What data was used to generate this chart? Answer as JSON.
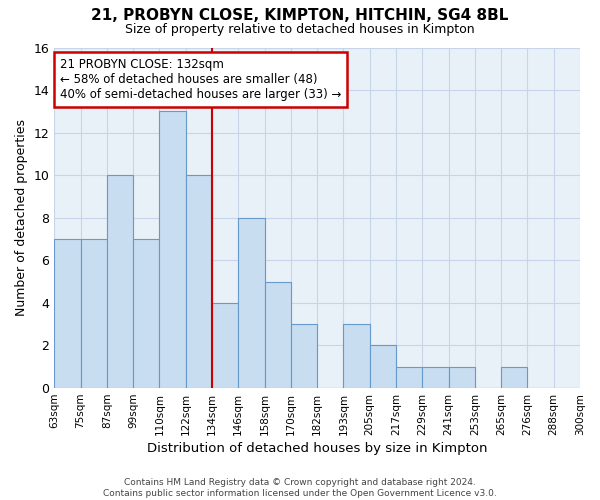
{
  "title": "21, PROBYN CLOSE, KIMPTON, HITCHIN, SG4 8BL",
  "subtitle": "Size of property relative to detached houses in Kimpton",
  "xlabel": "Distribution of detached houses by size in Kimpton",
  "ylabel": "Number of detached properties",
  "footer_line1": "Contains HM Land Registry data © Crown copyright and database right 2024.",
  "footer_line2": "Contains public sector information licensed under the Open Government Licence v3.0.",
  "bin_labels": [
    "63sqm",
    "75sqm",
    "87sqm",
    "99sqm",
    "110sqm",
    "122sqm",
    "134sqm",
    "146sqm",
    "158sqm",
    "170sqm",
    "182sqm",
    "193sqm",
    "205sqm",
    "217sqm",
    "229sqm",
    "241sqm",
    "253sqm",
    "265sqm",
    "276sqm",
    "288sqm",
    "300sqm"
  ],
  "bar_values": [
    7,
    7,
    10,
    7,
    13,
    10,
    4,
    8,
    5,
    3,
    0,
    3,
    2,
    1,
    1,
    1,
    0,
    1,
    0,
    0
  ],
  "bar_color": "#c8ddef",
  "bar_edge_color": "#6699cc",
  "reference_line_x": 6.0,
  "reference_line_color": "#cc0000",
  "ylim": [
    0,
    16
  ],
  "yticks": [
    0,
    2,
    4,
    6,
    8,
    10,
    12,
    14,
    16
  ],
  "annotation_line1": "21 PROBYN CLOSE: 132sqm",
  "annotation_line2": "← 58% of detached houses are smaller (48)",
  "annotation_line3": "40% of semi-detached houses are larger (33) →",
  "annotation_box_edge": "#cc0000",
  "annotation_box_facecolor": "#ffffff",
  "background_color": "#ffffff",
  "plot_background": "#e8f0f8",
  "grid_color": "#c8d4e8",
  "title_fontsize": 11,
  "subtitle_fontsize": 9
}
